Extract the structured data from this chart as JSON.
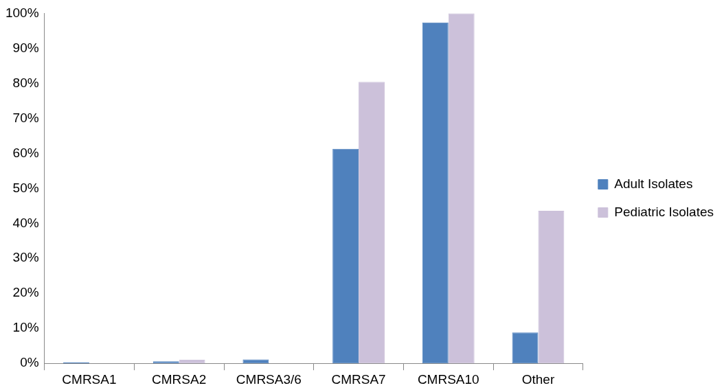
{
  "chart_data": {
    "type": "bar",
    "categories": [
      "CMRSA1",
      "CMRSA2",
      "CMRSA3/6",
      "CMRSA7",
      "CMRSA10",
      "Other"
    ],
    "series": [
      {
        "name": "Adult Isolates",
        "color": "#4f81bd",
        "values": [
          0.3,
          0.6,
          1.1,
          61.3,
          97.4,
          8.8
        ]
      },
      {
        "name": "Pediatric Isolates",
        "color": "#ccc1da",
        "values": [
          0,
          1.0,
          0,
          80.4,
          100,
          43.6
        ]
      }
    ],
    "ylim": [
      0,
      100
    ],
    "yticks": [
      {
        "value": 0,
        "label": "0%"
      },
      {
        "value": 10,
        "label": "10%"
      },
      {
        "value": 20,
        "label": "20%"
      },
      {
        "value": 30,
        "label": "30%"
      },
      {
        "value": 40,
        "label": "40%"
      },
      {
        "value": 50,
        "label": "50%"
      },
      {
        "value": 60,
        "label": "60%"
      },
      {
        "value": 70,
        "label": "70%"
      },
      {
        "value": 80,
        "label": "80%"
      },
      {
        "value": 90,
        "label": "90%"
      },
      {
        "value": 100,
        "label": "100%"
      }
    ],
    "grid": false,
    "legend": "right"
  }
}
